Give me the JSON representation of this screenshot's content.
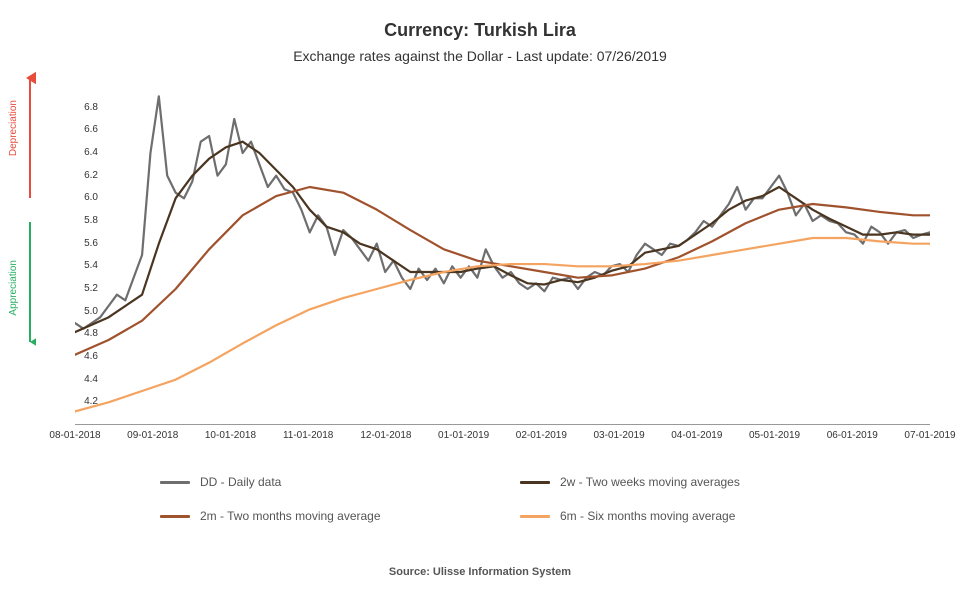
{
  "title": "Currency: Turkish Lira",
  "subtitle": "Exchange rates against the Dollar - Last update: 07/26/2019",
  "source": "Source: Ulisse Information System",
  "axis_labels": {
    "depreciation": "Depreciation",
    "appreciation": "Appreciation"
  },
  "arrow_colors": {
    "depreciation": "#e74c3c",
    "appreciation": "#27ae60"
  },
  "chart": {
    "type": "line",
    "background_color": "#ffffff",
    "grid_color": "#e0e0e0",
    "axis_line_color": "#333333",
    "ylim": [
      4.0,
      7.0
    ],
    "yticks": [
      4.2,
      4.4,
      4.6,
      4.8,
      5.0,
      5.2,
      5.4,
      5.6,
      5.8,
      6.0,
      6.2,
      6.4,
      6.6,
      6.8
    ],
    "xticks": [
      "08-01-2018",
      "09-01-2018",
      "10-01-2018",
      "11-01-2018",
      "12-01-2018",
      "01-01-2019",
      "02-01-2019",
      "03-01-2019",
      "04-01-2019",
      "05-01-2019",
      "06-01-2019",
      "07-01-2019"
    ],
    "label_fontsize": 10,
    "title_fontsize": 18,
    "line_width": 2.2,
    "series": [
      {
        "name": "DD - Daily data",
        "color": "#6e6e6e",
        "data": [
          [
            0,
            4.9
          ],
          [
            0.5,
            4.85
          ],
          [
            1,
            4.9
          ],
          [
            1.5,
            4.95
          ],
          [
            2,
            5.05
          ],
          [
            2.5,
            5.15
          ],
          [
            3,
            5.1
          ],
          [
            3.5,
            5.3
          ],
          [
            4,
            5.5
          ],
          [
            4.5,
            6.4
          ],
          [
            5,
            6.9
          ],
          [
            5.5,
            6.2
          ],
          [
            6,
            6.05
          ],
          [
            6.5,
            6.0
          ],
          [
            7,
            6.15
          ],
          [
            7.5,
            6.5
          ],
          [
            8,
            6.55
          ],
          [
            8.5,
            6.2
          ],
          [
            9,
            6.3
          ],
          [
            9.5,
            6.7
          ],
          [
            10,
            6.4
          ],
          [
            10.5,
            6.5
          ],
          [
            11,
            6.3
          ],
          [
            11.5,
            6.1
          ],
          [
            12,
            6.2
          ],
          [
            12.5,
            6.08
          ],
          [
            13,
            6.05
          ],
          [
            13.5,
            5.9
          ],
          [
            14,
            5.7
          ],
          [
            14.5,
            5.85
          ],
          [
            15,
            5.75
          ],
          [
            15.5,
            5.5
          ],
          [
            16,
            5.72
          ],
          [
            16.5,
            5.65
          ],
          [
            17,
            5.55
          ],
          [
            17.5,
            5.45
          ],
          [
            18,
            5.6
          ],
          [
            18.5,
            5.35
          ],
          [
            19,
            5.45
          ],
          [
            19.5,
            5.3
          ],
          [
            20,
            5.2
          ],
          [
            20.5,
            5.38
          ],
          [
            21,
            5.28
          ],
          [
            21.5,
            5.38
          ],
          [
            22,
            5.25
          ],
          [
            22.5,
            5.4
          ],
          [
            23,
            5.3
          ],
          [
            23.5,
            5.4
          ],
          [
            24,
            5.3
          ],
          [
            24.5,
            5.55
          ],
          [
            25,
            5.4
          ],
          [
            25.5,
            5.3
          ],
          [
            26,
            5.35
          ],
          [
            26.5,
            5.25
          ],
          [
            27,
            5.2
          ],
          [
            27.5,
            5.25
          ],
          [
            28,
            5.18
          ],
          [
            28.5,
            5.3
          ],
          [
            29,
            5.28
          ],
          [
            29.5,
            5.3
          ],
          [
            30,
            5.2
          ],
          [
            30.5,
            5.3
          ],
          [
            31,
            5.35
          ],
          [
            31.5,
            5.32
          ],
          [
            32,
            5.4
          ],
          [
            32.5,
            5.42
          ],
          [
            33,
            5.35
          ],
          [
            33.5,
            5.5
          ],
          [
            34,
            5.6
          ],
          [
            34.5,
            5.55
          ],
          [
            35,
            5.5
          ],
          [
            35.5,
            5.6
          ],
          [
            36,
            5.58
          ],
          [
            36.5,
            5.63
          ],
          [
            37,
            5.7
          ],
          [
            37.5,
            5.8
          ],
          [
            38,
            5.75
          ],
          [
            38.5,
            5.85
          ],
          [
            39,
            5.95
          ],
          [
            39.5,
            6.1
          ],
          [
            40,
            5.9
          ],
          [
            40.5,
            6.0
          ],
          [
            41,
            6.0
          ],
          [
            41.5,
            6.1
          ],
          [
            42,
            6.2
          ],
          [
            42.5,
            6.05
          ],
          [
            43,
            5.85
          ],
          [
            43.5,
            5.95
          ],
          [
            44,
            5.8
          ],
          [
            44.5,
            5.85
          ],
          [
            45,
            5.8
          ],
          [
            45.5,
            5.78
          ],
          [
            46,
            5.7
          ],
          [
            46.5,
            5.68
          ],
          [
            47,
            5.6
          ],
          [
            47.5,
            5.75
          ],
          [
            48,
            5.7
          ],
          [
            48.5,
            5.6
          ],
          [
            49,
            5.7
          ],
          [
            49.5,
            5.72
          ],
          [
            50,
            5.65
          ],
          [
            50.5,
            5.68
          ],
          [
            51,
            5.7
          ]
        ]
      },
      {
        "name": "2w - Two weeks moving averages",
        "color": "#4a3520",
        "data": [
          [
            0,
            4.82
          ],
          [
            2,
            4.95
          ],
          [
            4,
            5.15
          ],
          [
            5,
            5.6
          ],
          [
            6,
            6.0
          ],
          [
            7,
            6.2
          ],
          [
            8,
            6.35
          ],
          [
            9,
            6.45
          ],
          [
            10,
            6.5
          ],
          [
            11,
            6.4
          ],
          [
            12,
            6.25
          ],
          [
            13,
            6.1
          ],
          [
            14,
            5.9
          ],
          [
            15,
            5.75
          ],
          [
            16,
            5.7
          ],
          [
            17,
            5.6
          ],
          [
            18,
            5.55
          ],
          [
            19,
            5.45
          ],
          [
            20,
            5.35
          ],
          [
            21,
            5.35
          ],
          [
            22,
            5.35
          ],
          [
            23,
            5.35
          ],
          [
            24,
            5.38
          ],
          [
            25,
            5.4
          ],
          [
            26,
            5.32
          ],
          [
            27,
            5.25
          ],
          [
            28,
            5.24
          ],
          [
            29,
            5.28
          ],
          [
            30,
            5.26
          ],
          [
            31,
            5.3
          ],
          [
            32,
            5.36
          ],
          [
            33,
            5.4
          ],
          [
            34,
            5.52
          ],
          [
            35,
            5.55
          ],
          [
            36,
            5.58
          ],
          [
            37,
            5.68
          ],
          [
            38,
            5.78
          ],
          [
            39,
            5.9
          ],
          [
            40,
            5.98
          ],
          [
            41,
            6.02
          ],
          [
            42,
            6.1
          ],
          [
            43,
            6.0
          ],
          [
            44,
            5.9
          ],
          [
            45,
            5.82
          ],
          [
            46,
            5.75
          ],
          [
            47,
            5.68
          ],
          [
            48,
            5.68
          ],
          [
            49,
            5.7
          ],
          [
            50,
            5.68
          ],
          [
            51,
            5.68
          ]
        ]
      },
      {
        "name": "2m - Two months moving average",
        "color": "#a0522d",
        "data": [
          [
            0,
            4.62
          ],
          [
            2,
            4.75
          ],
          [
            4,
            4.92
          ],
          [
            6,
            5.2
          ],
          [
            8,
            5.55
          ],
          [
            10,
            5.85
          ],
          [
            12,
            6.02
          ],
          [
            14,
            6.1
          ],
          [
            16,
            6.05
          ],
          [
            18,
            5.9
          ],
          [
            20,
            5.72
          ],
          [
            22,
            5.55
          ],
          [
            24,
            5.45
          ],
          [
            26,
            5.4
          ],
          [
            28,
            5.35
          ],
          [
            30,
            5.3
          ],
          [
            32,
            5.32
          ],
          [
            34,
            5.38
          ],
          [
            36,
            5.48
          ],
          [
            38,
            5.62
          ],
          [
            40,
            5.78
          ],
          [
            42,
            5.9
          ],
          [
            44,
            5.95
          ],
          [
            46,
            5.92
          ],
          [
            48,
            5.88
          ],
          [
            50,
            5.85
          ],
          [
            51,
            5.85
          ]
        ]
      },
      {
        "name": "6m - Six months moving average",
        "color": "#f4a460",
        "data": [
          [
            0,
            4.12
          ],
          [
            2,
            4.2
          ],
          [
            4,
            4.3
          ],
          [
            6,
            4.4
          ],
          [
            8,
            4.55
          ],
          [
            10,
            4.72
          ],
          [
            12,
            4.88
          ],
          [
            14,
            5.02
          ],
          [
            16,
            5.12
          ],
          [
            18,
            5.2
          ],
          [
            20,
            5.28
          ],
          [
            22,
            5.35
          ],
          [
            24,
            5.4
          ],
          [
            26,
            5.42
          ],
          [
            28,
            5.42
          ],
          [
            30,
            5.4
          ],
          [
            32,
            5.4
          ],
          [
            34,
            5.42
          ],
          [
            36,
            5.45
          ],
          [
            38,
            5.5
          ],
          [
            40,
            5.55
          ],
          [
            42,
            5.6
          ],
          [
            44,
            5.65
          ],
          [
            46,
            5.65
          ],
          [
            48,
            5.62
          ],
          [
            50,
            5.6
          ],
          [
            51,
            5.6
          ]
        ]
      }
    ]
  },
  "legend": [
    {
      "label": "DD - Daily data",
      "color": "#6e6e6e"
    },
    {
      "label": "2w - Two weeks moving averages",
      "color": "#4a3520"
    },
    {
      "label": "2m - Two months moving average",
      "color": "#a0522d"
    },
    {
      "label": "6m - Six months moving average",
      "color": "#f4a460"
    }
  ]
}
